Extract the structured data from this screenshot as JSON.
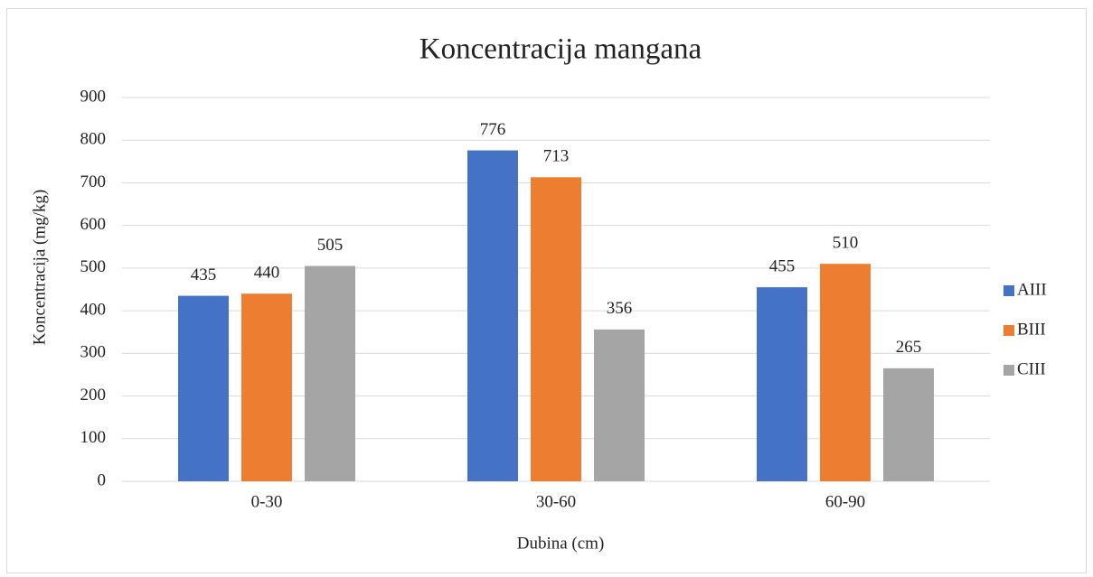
{
  "chart_data": {
    "type": "bar",
    "title": "Koncentracija mangana",
    "x_label": "Dubina (cm)",
    "y_label": "Koncentracija (mg/kg)",
    "categories": [
      "0-30",
      "30-60",
      "60-90"
    ],
    "series": [
      {
        "name": "AIII",
        "color": "#4472c4",
        "values": [
          435,
          776,
          455
        ]
      },
      {
        "name": "BIII",
        "color": "#ed7d31",
        "values": [
          440,
          713,
          510
        ]
      },
      {
        "name": "CIII",
        "color": "#a5a5a5",
        "values": [
          505,
          356,
          265
        ]
      }
    ],
    "ylim": [
      0,
      900
    ],
    "yticks": [
      0,
      100,
      200,
      300,
      400,
      500,
      600,
      700,
      800,
      900
    ],
    "grid": true,
    "legend": "right"
  }
}
